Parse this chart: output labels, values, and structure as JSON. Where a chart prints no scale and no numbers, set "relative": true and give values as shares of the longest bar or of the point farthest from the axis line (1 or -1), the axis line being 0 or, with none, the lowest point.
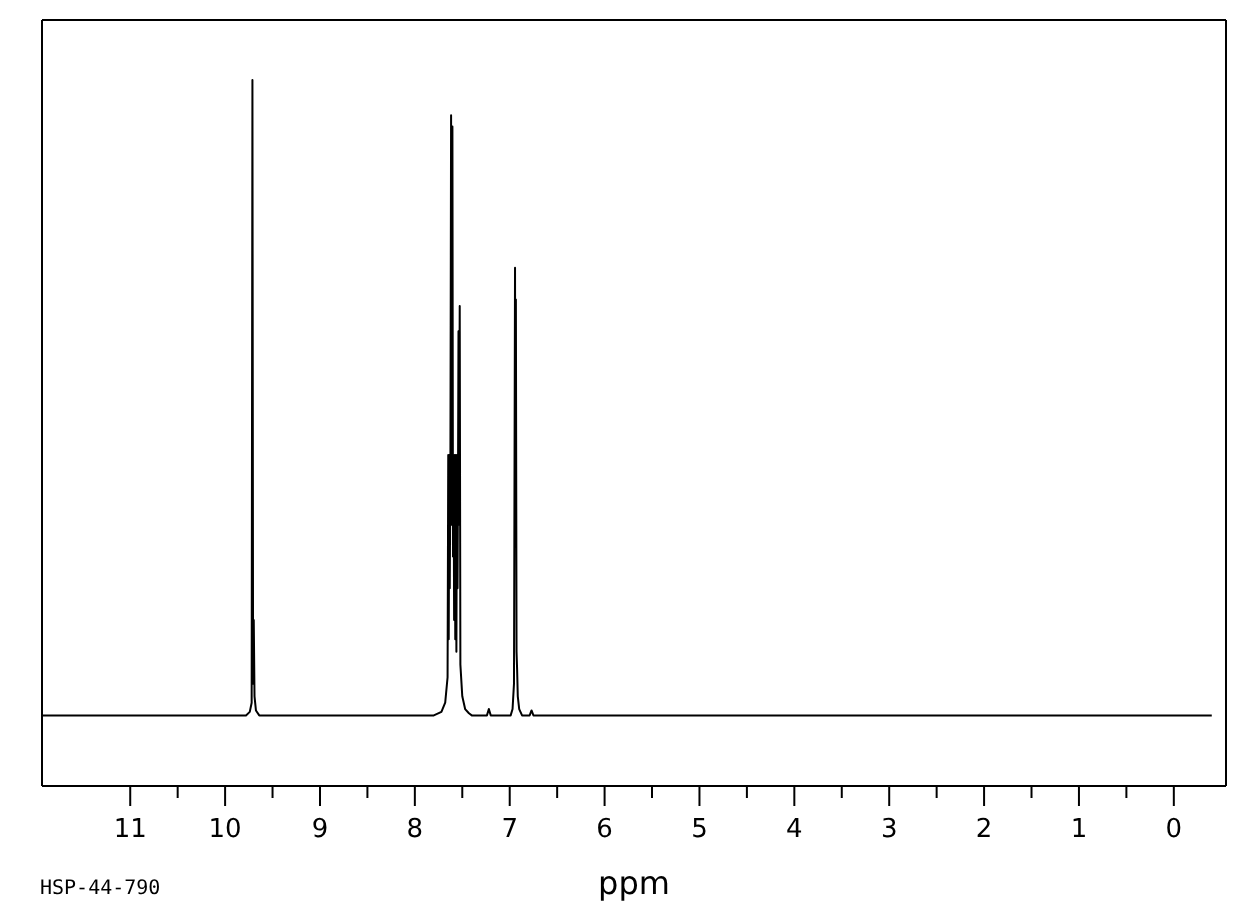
{
  "chart_data": {
    "type": "line",
    "xlabel": "ppm",
    "annotations": [
      "HSP-44-790"
    ],
    "relative": true,
    "x": [
      11.93,
      9.78,
      9.74,
      9.72,
      9.712,
      9.705,
      9.698,
      9.69,
      9.675,
      9.64,
      7.8,
      7.72,
      7.68,
      7.655,
      7.648,
      7.643,
      7.637,
      7.632,
      7.625,
      7.618,
      7.612,
      7.604,
      7.598,
      7.592,
      7.586,
      7.58,
      7.574,
      7.568,
      7.562,
      7.556,
      7.55,
      7.544,
      7.54,
      7.536,
      7.527,
      7.52,
      7.5,
      7.47,
      7.43,
      7.4,
      7.24,
      7.22,
      7.2,
      6.99,
      6.97,
      6.955,
      6.944,
      6.94,
      6.935,
      6.928,
      6.922,
      6.915,
      6.9,
      6.87,
      6.79,
      6.77,
      6.75,
      -0.4
    ],
    "series": [
      {
        "color": "#000000",
        "values": [
          0.1,
          0.1,
          0.105,
          0.118,
          1,
          0.145,
          0.235,
          0.127,
          0.107,
          0.1,
          0.1,
          0.105,
          0.118,
          0.154,
          0.469,
          0.208,
          0.469,
          0.28,
          0.469,
          0.95,
          0.37,
          0.934,
          0.325,
          0.469,
          0.235,
          0.469,
          0.208,
          0.469,
          0.19,
          0.469,
          0.28,
          0.469,
          0.644,
          0.37,
          0.68,
          0.172,
          0.127,
          0.109,
          0.103,
          0.1,
          0.1,
          0.109,
          0.1,
          0.1,
          0.109,
          0.145,
          0.734,
          0.37,
          0.689,
          0.19,
          0.165,
          0.127,
          0.109,
          0.1,
          0.1,
          0.107,
          0.1,
          0.1
        ]
      }
    ],
    "xlim": [
      11.93,
      -0.55
    ],
    "xticks": [
      11,
      {
        "value": 10.5,
        "label": null
      },
      10,
      {
        "value": 9.5,
        "label": null
      },
      9,
      {
        "value": 8.5,
        "label": null
      },
      8,
      {
        "value": 7.5,
        "label": null
      },
      7,
      {
        "value": 6.5,
        "label": null
      },
      6,
      {
        "value": 5.5,
        "label": null
      },
      5,
      {
        "value": 4.5,
        "label": null
      },
      4,
      {
        "value": 3.5,
        "label": null
      },
      3,
      {
        "value": 2.5,
        "label": null
      },
      2,
      {
        "value": 1.5,
        "label": null
      },
      1,
      {
        "value": 0.5,
        "label": null
      },
      0
    ],
    "marker": "none",
    "line_style": "solid"
  }
}
